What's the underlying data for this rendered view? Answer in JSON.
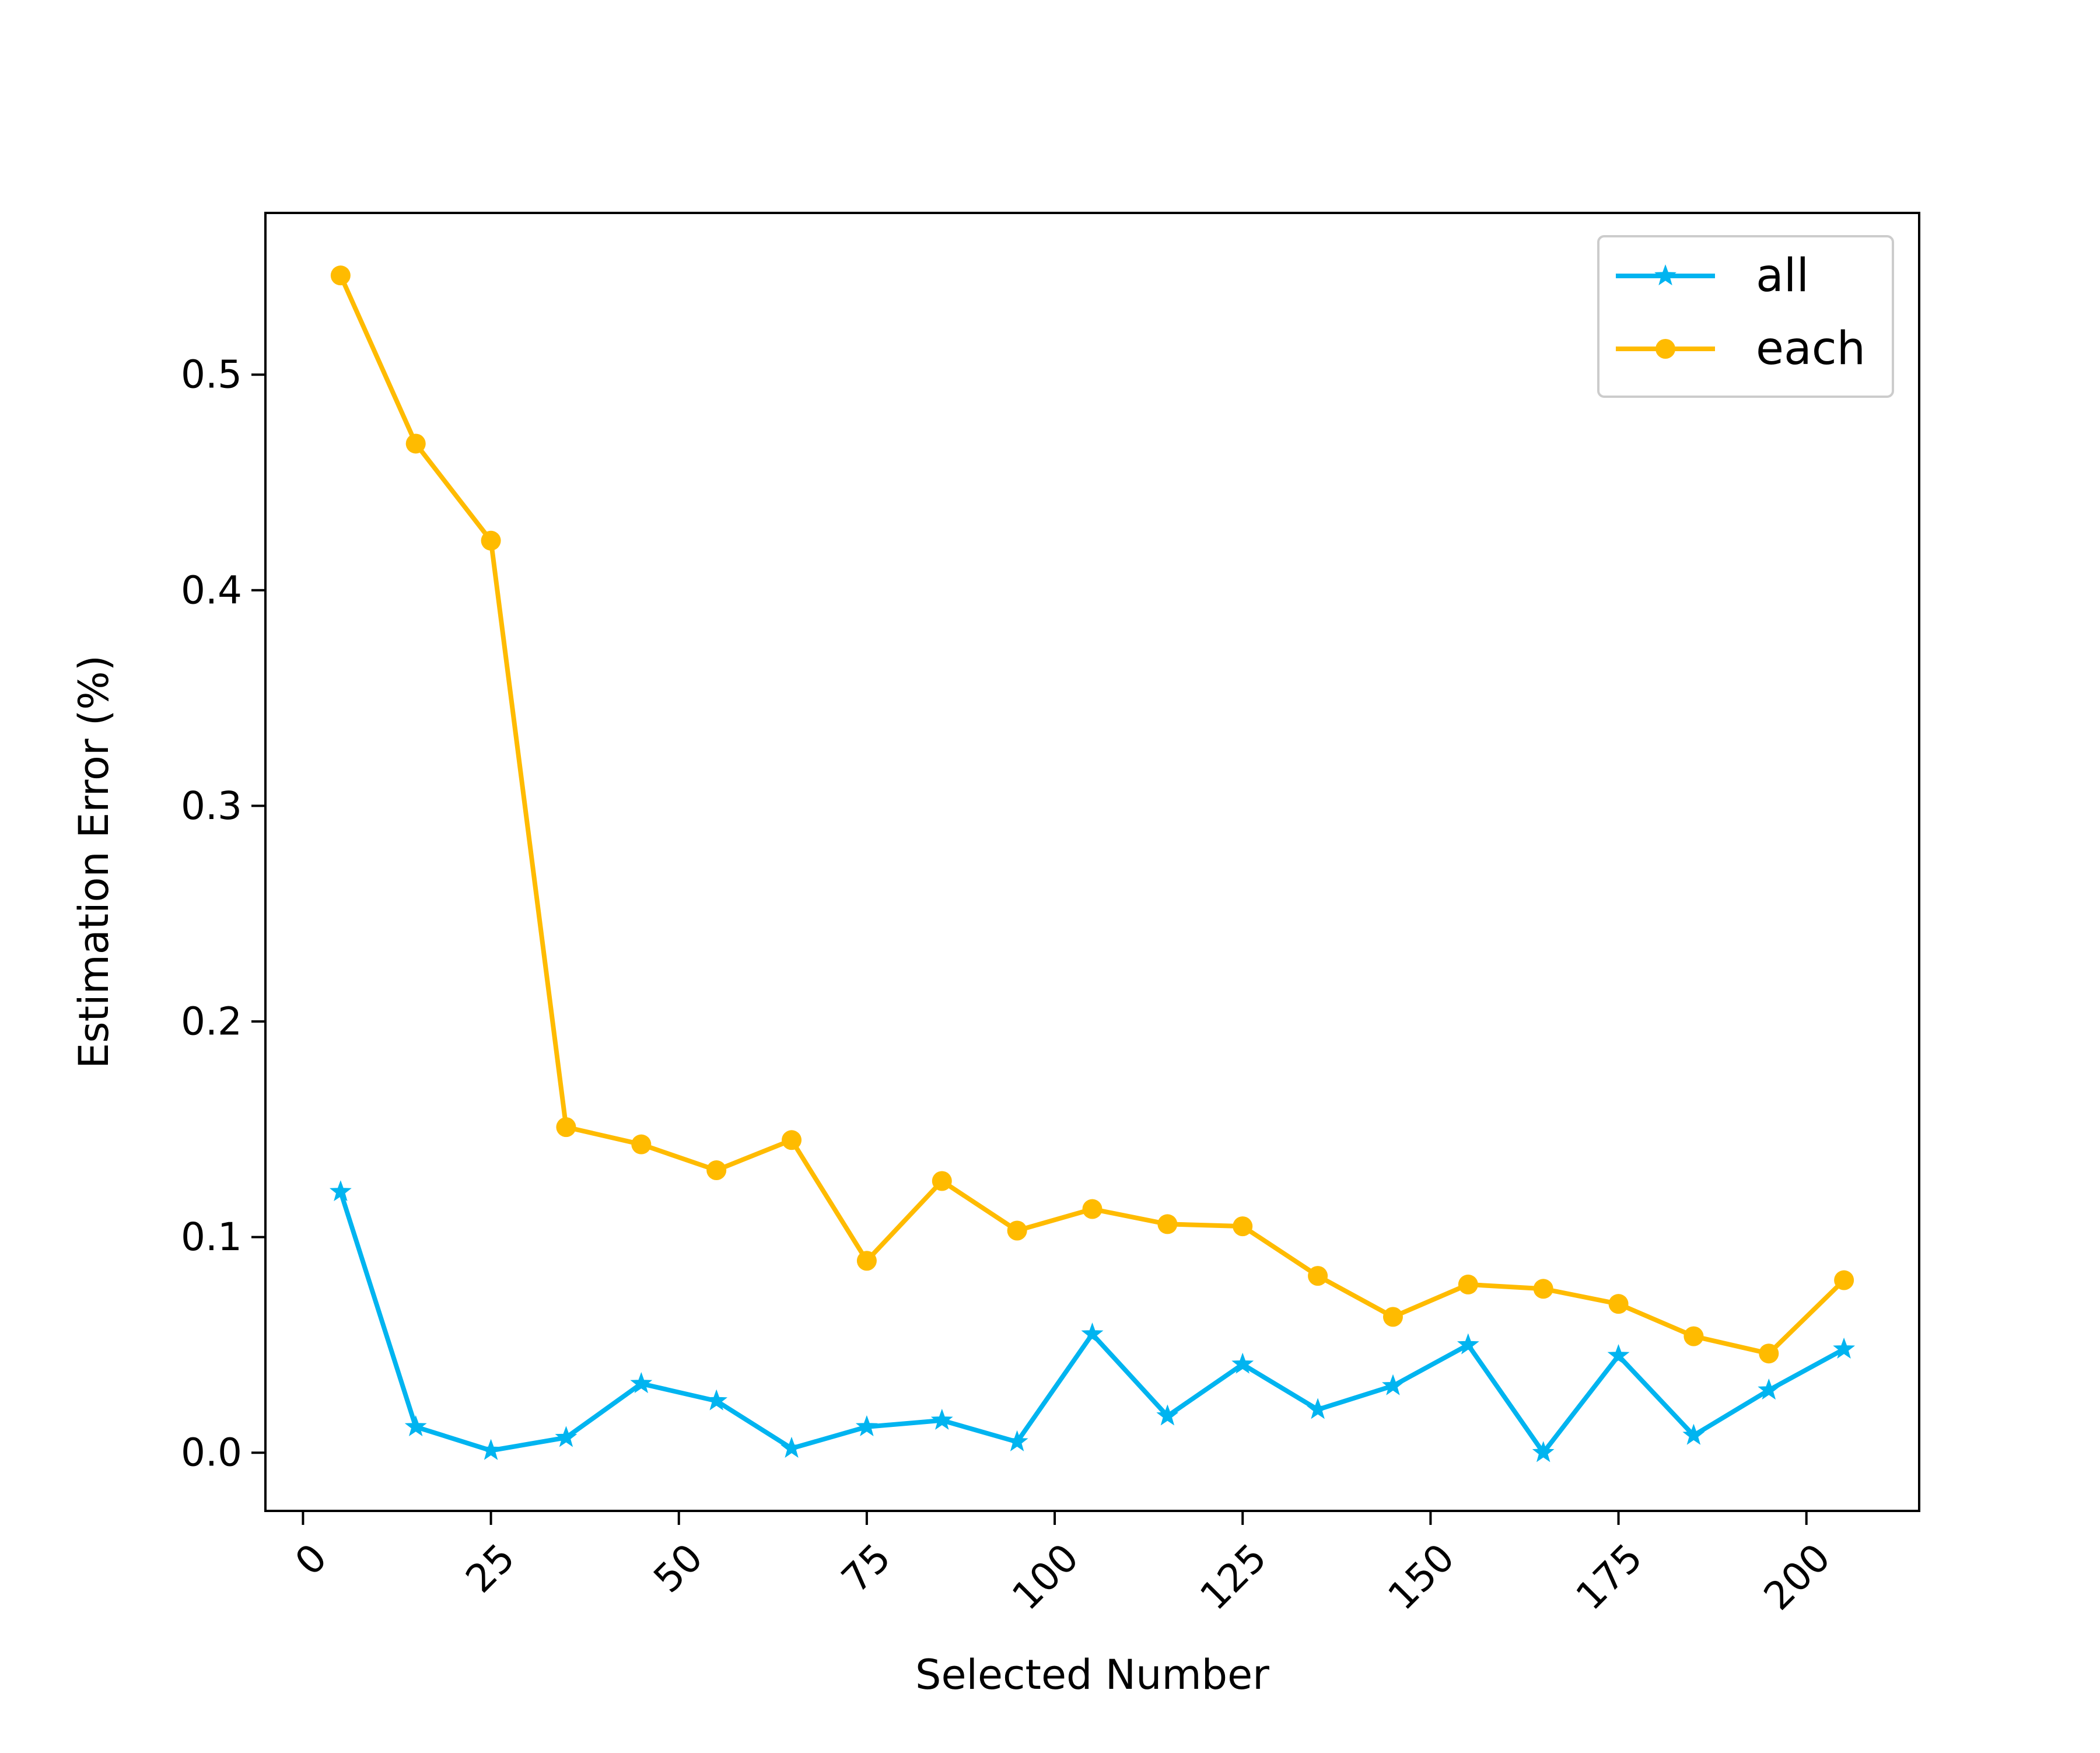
{
  "chart_data": {
    "type": "line",
    "title": "",
    "xlabel": "Selected Number",
    "ylabel": "Estimation Error (%)",
    "xlim": [
      -5,
      215
    ],
    "ylim": [
      -0.027,
      0.575
    ],
    "xticks": [
      0,
      25,
      50,
      75,
      100,
      125,
      150,
      175,
      200
    ],
    "xtick_labels": [
      "0",
      "25",
      "50",
      "75",
      "100",
      "125",
      "150",
      "175",
      "200"
    ],
    "yticks": [
      0.0,
      0.1,
      0.2,
      0.3,
      0.4,
      0.5
    ],
    "ytick_labels": [
      "0.0",
      "0.1",
      "0.2",
      "0.3",
      "0.4",
      "0.5"
    ],
    "xtick_rotation": 45,
    "grid": false,
    "legend_position": "top-right",
    "x": [
      5,
      15,
      25,
      35,
      45,
      55,
      65,
      75,
      85,
      95,
      105,
      115,
      125,
      135,
      145,
      155,
      165,
      175,
      185,
      195,
      205
    ],
    "series": [
      {
        "name": "all",
        "color": "#00b4f0",
        "marker": "star",
        "values": [
          0.121,
          0.012,
          0.001,
          0.007,
          0.032,
          0.024,
          0.002,
          0.012,
          0.015,
          0.005,
          0.055,
          0.017,
          0.041,
          0.02,
          0.031,
          0.05,
          0.0,
          0.045,
          0.008,
          0.029,
          0.048
        ]
      },
      {
        "name": "each",
        "color": "#ffbb00",
        "marker": "circle",
        "values": [
          0.546,
          0.468,
          0.423,
          0.151,
          0.143,
          0.131,
          0.145,
          0.089,
          0.126,
          0.103,
          0.113,
          0.106,
          0.105,
          0.082,
          0.063,
          0.078,
          0.076,
          0.069,
          0.054,
          0.046,
          0.08
        ]
      }
    ]
  }
}
